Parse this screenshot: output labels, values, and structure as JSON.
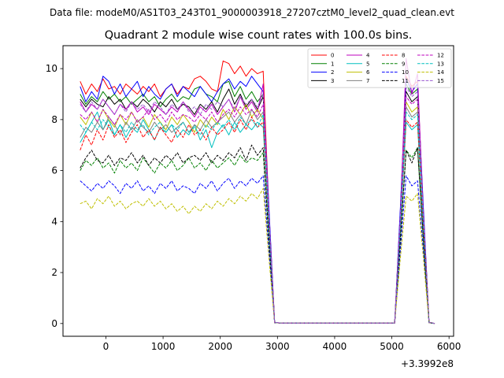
{
  "chart_data": {
    "type": "line",
    "suptitle": "Data file: modeM0/AS1T03_243T01_9000003918_27207cztM0_level2_quad_clean.evt",
    "title": "Quadrant 2 module wise count rates with 100.0s bins.",
    "xlabel": "",
    "ylabel": "",
    "x_offset_label": "+3.3992e8",
    "xlim": [
      -750,
      6080
    ],
    "ylim": [
      -0.5,
      10.9
    ],
    "xticks": [
      0,
      1000,
      2000,
      3000,
      4000,
      5000,
      6000
    ],
    "yticks": [
      0,
      2,
      4,
      6,
      8,
      10
    ],
    "legend_position": "top-right",
    "legend_columns": 4,
    "grid": false,
    "x": [
      -450,
      -350,
      -250,
      -150,
      -50,
      50,
      150,
      250,
      350,
      450,
      550,
      650,
      750,
      850,
      950,
      1050,
      1150,
      1250,
      1350,
      1450,
      1550,
      1650,
      1750,
      1850,
      1950,
      2050,
      2150,
      2250,
      2350,
      2450,
      2550,
      2650,
      2750,
      2850,
      2950,
      3050,
      3150,
      3250,
      3350,
      3450,
      3550,
      3650,
      3750,
      3850,
      3950,
      4050,
      4150,
      4250,
      4350,
      4450,
      4550,
      4650,
      4750,
      4850,
      4950,
      5050,
      5150,
      5250,
      5350,
      5450,
      5550,
      5650,
      5750
    ],
    "series": [
      {
        "name": "0",
        "color": "#ff0000",
        "dash": "solid",
        "values": [
          9.5,
          9.0,
          9.4,
          9.1,
          9.6,
          9.2,
          9.3,
          9.0,
          9.4,
          9.2,
          9.0,
          9.3,
          9.1,
          9.4,
          8.9,
          9.2,
          9.4,
          9.0,
          9.3,
          9.2,
          9.6,
          9.7,
          9.5,
          9.2,
          9.1,
          10.3,
          10.2,
          9.8,
          10.1,
          9.7,
          10.0,
          9.8,
          9.9,
          4.5,
          0.05,
          0.02,
          0.02,
          0.02,
          0.02,
          0.02,
          0.02,
          0.02,
          0.02,
          0.02,
          0.02,
          0.02,
          0.02,
          0.02,
          0.02,
          0.02,
          0.02,
          0.02,
          0.02,
          0.02,
          0.02,
          0.02,
          4.5,
          9.7,
          9.3,
          9.5,
          4.5,
          0.05,
          0.0
        ]
      },
      {
        "name": "1",
        "color": "#008000",
        "dash": "solid",
        "values": [
          9.0,
          8.6,
          8.9,
          8.7,
          9.1,
          8.8,
          9.0,
          8.7,
          8.9,
          8.6,
          8.8,
          9.0,
          8.7,
          8.9,
          8.5,
          8.8,
          9.0,
          8.7,
          8.9,
          8.8,
          9.2,
          9.3,
          9.0,
          8.9,
          8.7,
          9.4,
          9.5,
          8.9,
          9.3,
          8.8,
          9.1,
          8.7,
          9.0,
          4.3,
          0.04,
          0.02,
          0.02,
          0.02,
          0.02,
          0.02,
          0.02,
          0.02,
          0.02,
          0.02,
          0.02,
          0.02,
          0.02,
          0.02,
          0.02,
          0.02,
          0.02,
          0.02,
          0.02,
          0.02,
          0.02,
          0.02,
          4.3,
          9.4,
          9.0,
          9.2,
          4.3,
          0.04,
          0.0
        ]
      },
      {
        "name": "2",
        "color": "#0000ff",
        "dash": "solid",
        "values": [
          9.3,
          8.7,
          9.1,
          8.8,
          9.7,
          9.5,
          9.0,
          9.4,
          8.9,
          9.2,
          9.5,
          8.9,
          9.3,
          9.0,
          8.8,
          9.2,
          9.4,
          8.9,
          9.3,
          9.1,
          8.9,
          9.3,
          9.0,
          8.7,
          9.1,
          9.4,
          9.6,
          9.2,
          9.5,
          9.3,
          9.7,
          9.4,
          9.1,
          4.6,
          0.05,
          0.02,
          0.02,
          0.02,
          0.02,
          0.02,
          0.02,
          0.02,
          0.02,
          0.02,
          0.02,
          0.02,
          0.02,
          0.02,
          0.02,
          0.02,
          0.02,
          0.02,
          0.02,
          0.02,
          0.02,
          0.02,
          4.6,
          9.6,
          9.1,
          9.4,
          4.6,
          0.05,
          0.0
        ]
      },
      {
        "name": "3",
        "color": "#000000",
        "dash": "solid",
        "values": [
          8.8,
          8.5,
          8.8,
          8.6,
          8.5,
          8.9,
          8.6,
          8.8,
          8.4,
          8.7,
          8.5,
          8.8,
          8.6,
          8.3,
          8.7,
          8.5,
          8.8,
          8.4,
          8.6,
          8.5,
          8.2,
          8.6,
          8.4,
          8.7,
          8.3,
          8.8,
          9.2,
          8.6,
          9.0,
          8.5,
          8.8,
          8.4,
          8.9,
          4.2,
          0.04,
          0.02,
          0.02,
          0.02,
          0.02,
          0.02,
          0.02,
          0.02,
          0.02,
          0.02,
          0.02,
          0.02,
          0.02,
          0.02,
          0.02,
          0.02,
          0.02,
          0.02,
          0.02,
          0.02,
          0.02,
          0.02,
          4.2,
          9.1,
          8.7,
          8.9,
          4.2,
          0.04,
          0.0
        ]
      },
      {
        "name": "4",
        "color": "#bf00bf",
        "dash": "solid",
        "values": [
          8.7,
          8.3,
          8.6,
          8.4,
          8.8,
          8.5,
          8.2,
          8.6,
          8.4,
          8.7,
          8.3,
          8.5,
          8.2,
          8.6,
          8.4,
          8.2,
          8.5,
          8.3,
          8.7,
          8.4,
          8.1,
          8.5,
          8.3,
          8.6,
          8.2,
          8.5,
          8.8,
          8.3,
          8.9,
          8.4,
          8.7,
          8.3,
          9.4,
          4.2,
          0.04,
          0.02,
          0.02,
          0.02,
          0.02,
          0.02,
          0.02,
          0.02,
          0.02,
          0.02,
          0.02,
          0.02,
          0.02,
          0.02,
          0.02,
          0.02,
          0.02,
          0.02,
          0.02,
          0.02,
          0.02,
          0.02,
          4.2,
          10.4,
          9.0,
          9.8,
          4.2,
          0.04,
          0.0
        ]
      },
      {
        "name": "5",
        "color": "#00bfbf",
        "dash": "solid",
        "values": [
          7.1,
          7.5,
          7.9,
          8.3,
          7.6,
          8.0,
          7.4,
          7.8,
          7.3,
          7.7,
          7.5,
          8.0,
          7.6,
          7.2,
          7.7,
          7.5,
          7.8,
          7.3,
          7.6,
          7.4,
          7.8,
          7.2,
          7.6,
          6.9,
          7.5,
          7.8,
          7.4,
          7.9,
          7.5,
          7.8,
          7.6,
          7.9,
          7.7,
          3.8,
          0.04,
          0.02,
          0.02,
          0.02,
          0.02,
          0.02,
          0.02,
          0.02,
          0.02,
          0.02,
          0.02,
          0.02,
          0.02,
          0.02,
          0.02,
          0.02,
          0.02,
          0.02,
          0.02,
          0.02,
          0.02,
          0.02,
          3.8,
          7.9,
          7.6,
          7.8,
          3.8,
          0.04,
          0.0
        ]
      },
      {
        "name": "6",
        "color": "#bfbf00",
        "dash": "solid",
        "values": [
          8.1,
          7.8,
          8.3,
          7.9,
          8.4,
          8.0,
          7.7,
          8.2,
          7.8,
          8.3,
          7.9,
          8.1,
          7.7,
          8.2,
          7.9,
          7.6,
          8.1,
          7.8,
          8.2,
          7.9,
          7.5,
          8.0,
          7.7,
          8.1,
          7.8,
          8.4,
          8.0,
          8.5,
          8.2,
          8.6,
          8.1,
          8.4,
          8.0,
          4.0,
          0.04,
          0.02,
          0.02,
          0.02,
          0.02,
          0.02,
          0.02,
          0.02,
          0.02,
          0.02,
          0.02,
          0.02,
          0.02,
          0.02,
          0.02,
          0.02,
          0.02,
          0.02,
          0.02,
          0.02,
          0.02,
          0.02,
          4.0,
          8.7,
          8.3,
          8.5,
          4.0,
          0.04,
          0.0
        ]
      },
      {
        "name": "7",
        "color": "#808080",
        "dash": "solid",
        "values": [
          7.3,
          7.7,
          7.5,
          7.9,
          7.6,
          8.1,
          7.8,
          7.4,
          7.9,
          7.6,
          8.0,
          7.7,
          7.5,
          7.9,
          7.6,
          7.8,
          7.5,
          7.7,
          7.9,
          7.5,
          7.8,
          7.6,
          8.0,
          7.7,
          7.9,
          8.1,
          8.3,
          7.9,
          8.2,
          7.8,
          8.4,
          8.0,
          8.3,
          4.0,
          0.04,
          0.02,
          0.02,
          0.02,
          0.02,
          0.02,
          0.02,
          0.02,
          0.02,
          0.02,
          0.02,
          0.02,
          0.02,
          0.02,
          0.02,
          0.02,
          0.02,
          0.02,
          0.02,
          0.02,
          0.02,
          0.02,
          4.0,
          8.5,
          8.1,
          8.3,
          4.0,
          0.04,
          0.0
        ]
      },
      {
        "name": "8",
        "color": "#ff0000",
        "dash": "dashed",
        "values": [
          6.8,
          7.4,
          7.0,
          7.6,
          7.2,
          7.8,
          7.3,
          7.6,
          7.1,
          7.5,
          7.8,
          7.3,
          7.6,
          7.2,
          7.7,
          7.4,
          7.1,
          7.6,
          7.3,
          7.8,
          7.4,
          7.6,
          7.2,
          7.7,
          7.4,
          7.6,
          7.9,
          7.5,
          8.0,
          7.6,
          8.1,
          7.7,
          7.9,
          3.9,
          0.04,
          0.02,
          0.02,
          0.02,
          0.02,
          0.02,
          0.02,
          0.02,
          0.02,
          0.02,
          0.02,
          0.02,
          0.02,
          0.02,
          0.02,
          0.02,
          0.02,
          0.02,
          0.02,
          0.02,
          0.02,
          0.02,
          3.9,
          8.0,
          7.7,
          7.9,
          3.9,
          0.04,
          0.0
        ]
      },
      {
        "name": "9",
        "color": "#008000",
        "dash": "dashed",
        "values": [
          6.0,
          6.4,
          6.2,
          6.5,
          6.1,
          6.3,
          5.9,
          6.4,
          6.1,
          6.3,
          6.0,
          6.5,
          6.2,
          5.9,
          6.3,
          6.1,
          6.4,
          6.0,
          6.2,
          6.5,
          6.1,
          6.3,
          6.0,
          6.4,
          6.1,
          6.3,
          6.5,
          6.2,
          6.6,
          6.3,
          6.5,
          6.4,
          6.7,
          3.3,
          0.03,
          0.02,
          0.02,
          0.02,
          0.02,
          0.02,
          0.02,
          0.02,
          0.02,
          0.02,
          0.02,
          0.02,
          0.02,
          0.02,
          0.02,
          0.02,
          0.02,
          0.02,
          0.02,
          0.02,
          0.02,
          0.02,
          3.3,
          6.8,
          6.5,
          6.9,
          3.3,
          0.03,
          0.0
        ]
      },
      {
        "name": "10",
        "color": "#0000ff",
        "dash": "dashed",
        "values": [
          5.6,
          5.4,
          5.2,
          5.5,
          5.3,
          5.6,
          5.4,
          5.1,
          5.5,
          5.3,
          5.6,
          5.2,
          5.4,
          5.1,
          5.5,
          5.3,
          5.6,
          5.2,
          5.4,
          5.3,
          5.1,
          5.5,
          5.3,
          5.6,
          5.2,
          5.5,
          5.7,
          5.3,
          5.6,
          5.4,
          5.7,
          5.5,
          5.8,
          2.9,
          0.03,
          0.02,
          0.02,
          0.02,
          0.02,
          0.02,
          0.02,
          0.02,
          0.02,
          0.02,
          0.02,
          0.02,
          0.02,
          0.02,
          0.02,
          0.02,
          0.02,
          0.02,
          0.02,
          0.02,
          0.02,
          0.02,
          2.9,
          5.8,
          5.4,
          5.6,
          2.9,
          0.03,
          0.0
        ]
      },
      {
        "name": "11",
        "color": "#000000",
        "dash": "dashed",
        "values": [
          6.1,
          6.5,
          6.8,
          6.4,
          6.3,
          6.6,
          6.2,
          6.5,
          6.4,
          6.7,
          6.3,
          6.6,
          6.2,
          6.5,
          6.3,
          6.6,
          6.4,
          6.7,
          6.3,
          6.5,
          6.6,
          6.4,
          6.7,
          6.3,
          6.6,
          6.4,
          6.7,
          6.5,
          6.9,
          6.4,
          7.0,
          6.6,
          6.9,
          3.4,
          0.03,
          0.02,
          0.02,
          0.02,
          0.02,
          0.02,
          0.02,
          0.02,
          0.02,
          0.02,
          0.02,
          0.02,
          0.02,
          0.02,
          0.02,
          0.02,
          0.02,
          0.02,
          0.02,
          0.02,
          0.02,
          0.02,
          3.4,
          6.8,
          6.3,
          6.9,
          3.4,
          0.03,
          0.0
        ]
      },
      {
        "name": "12",
        "color": "#bf00bf",
        "dash": "dashed",
        "values": [
          8.2,
          8.0,
          8.3,
          7.9,
          8.4,
          8.1,
          7.8,
          8.2,
          8.0,
          8.3,
          7.9,
          8.1,
          8.4,
          8.0,
          8.2,
          7.9,
          8.3,
          8.0,
          8.2,
          8.1,
          7.9,
          8.2,
          8.0,
          8.3,
          7.9,
          8.2,
          8.4,
          8.1,
          8.5,
          8.2,
          8.4,
          8.1,
          8.6,
          4.1,
          0.04,
          0.02,
          0.02,
          0.02,
          0.02,
          0.02,
          0.02,
          0.02,
          0.02,
          0.02,
          0.02,
          0.02,
          0.02,
          0.02,
          0.02,
          0.02,
          0.02,
          0.02,
          0.02,
          0.02,
          0.02,
          0.02,
          4.1,
          8.9,
          8.6,
          8.8,
          4.1,
          0.04,
          0.0
        ]
      },
      {
        "name": "13",
        "color": "#00bfbf",
        "dash": "dashed",
        "values": [
          7.8,
          7.5,
          7.9,
          7.6,
          8.0,
          7.7,
          7.4,
          7.8,
          7.5,
          7.9,
          7.6,
          7.8,
          7.4,
          7.7,
          7.9,
          7.5,
          7.8,
          7.6,
          7.9,
          7.5,
          7.7,
          7.4,
          7.8,
          7.6,
          7.9,
          7.7,
          8.0,
          7.6,
          8.1,
          7.8,
          8.0,
          7.7,
          8.2,
          3.9,
          0.04,
          0.02,
          0.02,
          0.02,
          0.02,
          0.02,
          0.02,
          0.02,
          0.02,
          0.02,
          0.02,
          0.02,
          0.02,
          0.02,
          0.02,
          0.02,
          0.02,
          0.02,
          0.02,
          0.02,
          0.02,
          0.02,
          3.9,
          8.3,
          8.0,
          8.2,
          3.9,
          0.04,
          0.0
        ]
      },
      {
        "name": "14",
        "color": "#bfbf00",
        "dash": "dashed",
        "values": [
          4.7,
          4.8,
          4.5,
          4.9,
          4.7,
          5.0,
          4.6,
          4.8,
          4.5,
          4.7,
          4.8,
          4.6,
          4.9,
          4.6,
          4.8,
          4.5,
          4.7,
          4.4,
          4.6,
          4.3,
          4.6,
          4.4,
          4.7,
          4.5,
          4.8,
          4.6,
          4.9,
          4.7,
          5.0,
          4.8,
          5.1,
          4.9,
          5.3,
          2.6,
          0.03,
          0.02,
          0.02,
          0.02,
          0.02,
          0.02,
          0.02,
          0.02,
          0.02,
          0.02,
          0.02,
          0.02,
          0.02,
          0.02,
          0.02,
          0.02,
          0.02,
          0.02,
          0.02,
          0.02,
          0.02,
          0.02,
          2.6,
          5.0,
          4.8,
          5.1,
          2.6,
          0.03,
          0.0
        ]
      },
      {
        "name": "15",
        "color": "#9b59d0",
        "dash": "dashed",
        "values": [
          8.6,
          8.3,
          8.7,
          8.4,
          8.8,
          8.5,
          8.2,
          8.6,
          8.3,
          8.7,
          8.4,
          8.6,
          8.3,
          8.7,
          8.5,
          8.2,
          8.6,
          8.4,
          8.7,
          8.3,
          8.5,
          8.2,
          8.6,
          8.4,
          8.7,
          8.5,
          8.8,
          8.4,
          8.9,
          8.6,
          8.8,
          8.5,
          9.0,
          4.3,
          0.04,
          0.02,
          0.02,
          0.02,
          0.02,
          0.02,
          0.02,
          0.02,
          0.02,
          0.02,
          0.02,
          0.02,
          0.02,
          0.02,
          0.02,
          0.02,
          0.02,
          0.02,
          0.02,
          0.02,
          0.02,
          0.02,
          4.3,
          9.3,
          8.9,
          9.1,
          4.3,
          0.04,
          0.0
        ]
      }
    ]
  }
}
